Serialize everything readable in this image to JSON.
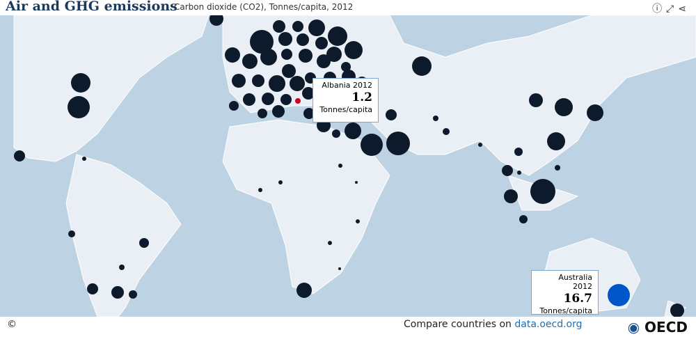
{
  "header": {
    "title": "Air and GHG emissions",
    "subtitle": "Carbon dioxide (CO2), Tonnes/capita, 2012"
  },
  "tooltips": [
    {
      "label": "Albania 2012",
      "value": 1.2,
      "unit": "Tonnes/capita"
    },
    {
      "label": "Australia 2012",
      "value": 16.7,
      "unit": "Tonnes/capita"
    }
  ],
  "footer": {
    "copyright": "©",
    "compare": "Compare countries on",
    "link": "data.oecd.org",
    "logo": "OECD"
  }
}
